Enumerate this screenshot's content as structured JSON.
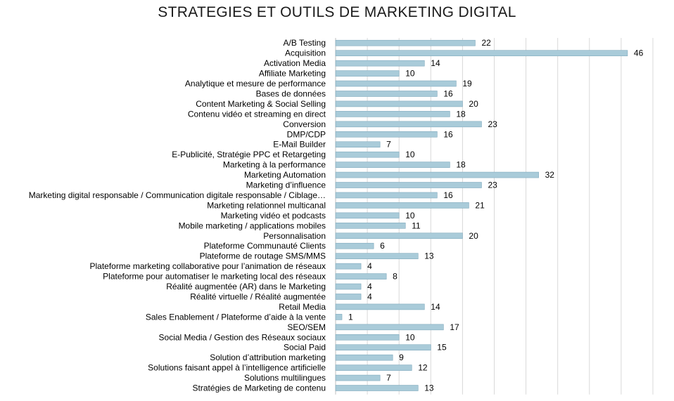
{
  "chart_data": {
    "type": "bar",
    "orientation": "horizontal",
    "title": "STRATEGIES ET OUTILS DE MARKETING DIGITAL",
    "xlabel": "",
    "ylabel": "",
    "xlim": [
      0,
      50
    ],
    "grid": true,
    "legend": "none",
    "bar_color": "#a9cbd9",
    "categories": [
      "A/B Testing",
      "Acquisition",
      "Activation Media",
      "Affiliate Marketing",
      "Analytique et mesure de performance",
      "Bases de données",
      "Content Marketing & Social Selling",
      "Contenu vidéo et streaming en direct",
      "Conversion",
      "DMP/CDP",
      "E-Mail Builder",
      "E-Publicité, Stratégie PPC et Retargeting",
      "Marketing à la performance",
      "Marketing Automation",
      "Marketing d’influence",
      "Marketing digital responsable / Communication digitale responsable / Ciblage…",
      "Marketing relationnel multicanal",
      "Marketing vidéo et podcasts",
      "Mobile marketing / applications mobiles",
      "Personnalisation",
      "Plateforme Communauté Clients",
      "Plateforme de routage SMS/MMS",
      "Plateforme marketing collaborative pour l’animation de réseaux",
      "Plateforme pour automatiser le marketing local des réseaux",
      "Réalité augmentée (AR) dans le Marketing",
      "Réalité virtuelle / Réalité augmentée",
      "Retail Media",
      "Sales Enablement / Plateforme d’aide à la vente",
      "SEO/SEM",
      "Social Media / Gestion des Réseaux sociaux",
      "Social Paid",
      "Solution d’attribution marketing",
      "Solutions faisant appel à l’intelligence artificielle",
      "Solutions multilingues",
      "Stratégies de Marketing de contenu"
    ],
    "values": [
      22,
      46,
      14,
      10,
      19,
      16,
      20,
      18,
      23,
      16,
      7,
      10,
      18,
      32,
      23,
      16,
      21,
      10,
      11,
      20,
      6,
      13,
      4,
      8,
      4,
      4,
      14,
      1,
      17,
      10,
      15,
      9,
      12,
      7,
      13
    ]
  }
}
